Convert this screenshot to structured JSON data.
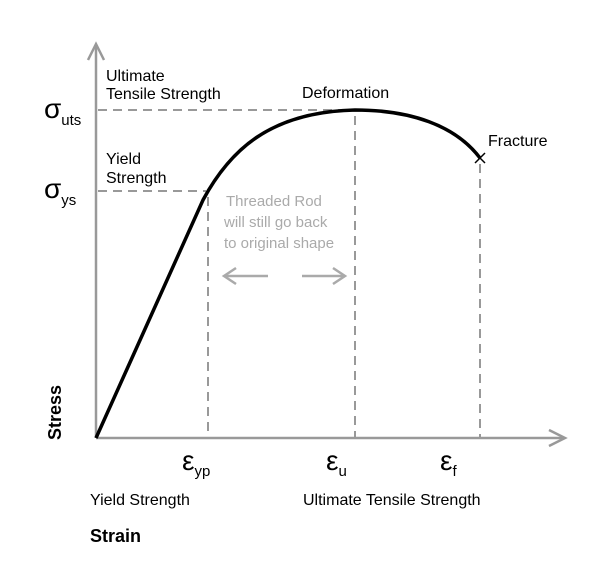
{
  "axes": {
    "y_label": "Stress",
    "x_label": "Strain"
  },
  "stress_marks": {
    "uts": {
      "symbol": "σ",
      "sub": "uts",
      "label_line1": "Ultimate",
      "label_line2": "Tensile Strength"
    },
    "ys": {
      "symbol": "σ",
      "sub": "ys",
      "label_line1": "Yield",
      "label_line2": "Strength"
    }
  },
  "strain_marks": {
    "yp": {
      "symbol": "ε",
      "sub": "yp",
      "caption": "Yield Strength"
    },
    "u": {
      "symbol": "ε",
      "sub": "u",
      "caption": "Ultimate Tensile Strength"
    },
    "f": {
      "symbol": "ε",
      "sub": "f"
    }
  },
  "annotations": {
    "deformation": "Deformation",
    "fracture": "Fracture",
    "elastic_note": [
      "Threaded Rod",
      "will still go back",
      "to original shape"
    ]
  },
  "colors": {
    "curve": "#000000",
    "axis": "#999999",
    "dashes": "#999999",
    "note": "#aaaaaa"
  }
}
